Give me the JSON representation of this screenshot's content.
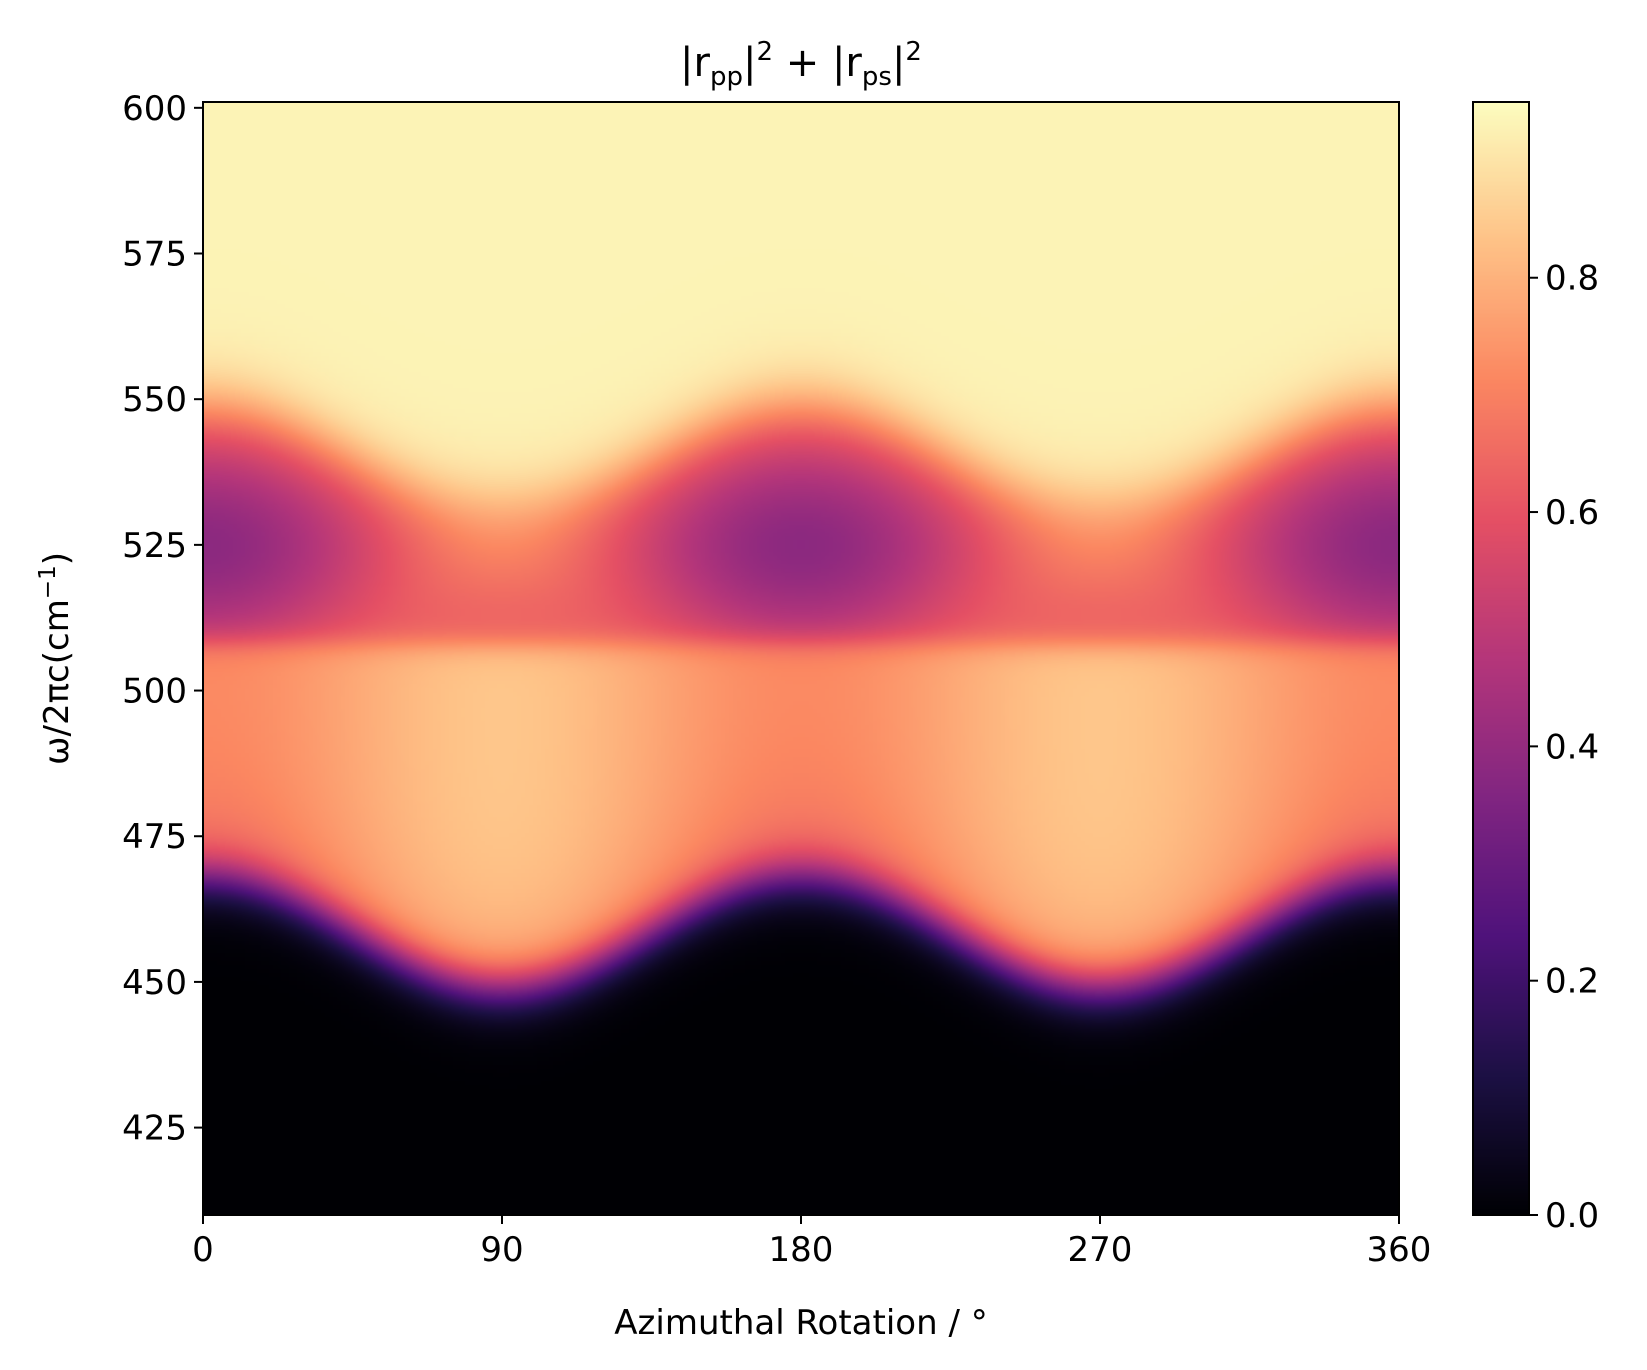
{
  "chart_data": {
    "type": "heatmap",
    "title": {
      "parts": [
        {
          "text": "|r",
          "sub": "pp",
          "after": "|",
          "sup": "2"
        },
        {
          "text": " + "
        },
        {
          "text": "|r",
          "sub": "ps",
          "after": "|",
          "sup": "2"
        }
      ]
    },
    "xlabel": "Azimuthal Rotation / °",
    "ylabel": {
      "base": "ω/2πc(cm",
      "sup": "−1",
      "close": ")"
    },
    "xlim": [
      0,
      360
    ],
    "ylim": [
      410,
      601
    ],
    "x_ticks": [
      0,
      90,
      180,
      270,
      360
    ],
    "x_tick_labels": [
      "0",
      "90",
      "180",
      "270",
      "360"
    ],
    "y_ticks": [
      425,
      450,
      475,
      500,
      525,
      550,
      575,
      600
    ],
    "y_tick_labels": [
      "425",
      "450",
      "475",
      "500",
      "525",
      "550",
      "575",
      "600"
    ],
    "colormap": "magma",
    "clim": [
      0,
      0.95
    ],
    "colorbar_ticks": [
      0,
      0.2,
      0.4,
      0.6,
      0.8
    ],
    "colorbar_tick_labels": [
      "0.0",
      "0.2",
      "0.4",
      "0.6",
      "0.8"
    ],
    "colormap_stops": [
      {
        "v": 0.0,
        "color": "#000004"
      },
      {
        "v": 0.125,
        "color": "#1c1044"
      },
      {
        "v": 0.25,
        "color": "#4f127b"
      },
      {
        "v": 0.375,
        "color": "#812581"
      },
      {
        "v": 0.5,
        "color": "#b5367a"
      },
      {
        "v": 0.625,
        "color": "#e55064"
      },
      {
        "v": 0.75,
        "color": "#fb8761"
      },
      {
        "v": 0.875,
        "color": "#fec287"
      },
      {
        "v": 1.0,
        "color": "#fcfdbf"
      }
    ],
    "grid": false,
    "colorbar_position": "right",
    "data_description": {
      "x_period_deg": 180,
      "lower_edge_wavenumber_at_0_deg": 468,
      "lower_edge_wavenumber_at_90_deg": 449,
      "reststrahlen_band_boundary": 508,
      "upper_edge_wavenumber_at_0_deg": 549,
      "upper_edge_wavenumber_at_90_deg": 531,
      "values_by_region": {
        "below_lower_edge": 0.0,
        "lower_band_min_at_0_deg": 0.72,
        "lower_band_max_at_90_deg": 0.84,
        "dip_center_wavenumber": 525,
        "dip_value_at_0_deg": 0.38,
        "dip_value_at_90_deg": 0.68,
        "above_upper_edge": 0.93
      }
    }
  }
}
